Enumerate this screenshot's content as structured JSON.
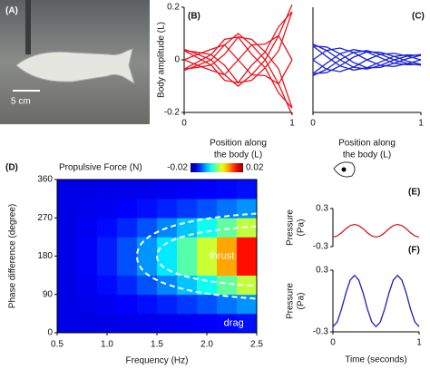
{
  "chart_data": [
    {
      "type": "image",
      "panel": "(A)",
      "scale_label": "5 cm"
    },
    {
      "type": "line",
      "panel": "(B)",
      "color": "#e8141e",
      "ylabel": "Body amplitude (L)",
      "xlabel": [
        "Position along",
        "the body (L)"
      ],
      "x": [
        0,
        0.125,
        0.25,
        0.375,
        0.5,
        0.625,
        0.75,
        0.875,
        1
      ],
      "xlim": [
        0,
        1
      ],
      "xticks": [
        0,
        1
      ],
      "ylim": [
        -0.2,
        0.2
      ],
      "yticks": [
        0.2,
        0,
        -0.2
      ],
      "series": [
        {
          "values": [
            0,
            -0.021,
            -0.04,
            -0.057,
            0,
            0.057,
            0.06,
            0.092,
            0
          ]
        },
        {
          "values": [
            0.035,
            0.008,
            -0.02,
            -0.078,
            -0.087,
            -0.021,
            0.03,
            0.126,
            0.183
          ]
        },
        {
          "values": [
            0.04,
            0.021,
            0,
            -0.057,
            -0.1,
            -0.057,
            0,
            0.092,
            0.21
          ]
        },
        {
          "values": [
            0.035,
            0.029,
            0.02,
            -0.021,
            -0.087,
            -0.078,
            -0.03,
            0.034,
            0.183
          ]
        },
        {
          "values": [
            0,
            0.021,
            0.04,
            0.057,
            0,
            -0.057,
            -0.06,
            -0.092,
            0
          ]
        },
        {
          "values": [
            -0.035,
            -0.008,
            0.02,
            0.078,
            0.087,
            0.021,
            -0.03,
            -0.126,
            -0.183
          ]
        },
        {
          "values": [
            -0.04,
            -0.021,
            0,
            0.057,
            0.1,
            0.057,
            0,
            -0.092,
            -0.21
          ]
        },
        {
          "values": [
            -0.035,
            -0.029,
            -0.02,
            0.021,
            0.087,
            0.078,
            0.03,
            -0.034,
            -0.183
          ]
        }
      ]
    },
    {
      "type": "line",
      "panel": "(C)",
      "color": "#1a24d6",
      "xlabel": [
        "Position along",
        "the body (L)"
      ],
      "x": [
        0,
        0.125,
        0.25,
        0.375,
        0.5,
        0.625,
        0.75,
        0.875,
        1
      ],
      "xlim": [
        0,
        1
      ],
      "xticks": [
        0,
        1
      ],
      "ylim": [
        -0.2,
        0.2
      ],
      "series": [
        {
          "values": [
            0,
            -0.036,
            -0.045,
            -0.028,
            0,
            0.021,
            0.025,
            0.014,
            0
          ]
        },
        {
          "values": [
            0.052,
            0.013,
            -0.023,
            -0.039,
            -0.03,
            -0.008,
            0.013,
            0.019,
            0.017
          ]
        },
        {
          "values": [
            0.06,
            0.036,
            0,
            -0.028,
            -0.035,
            -0.021,
            0,
            0.014,
            0.02
          ]
        },
        {
          "values": [
            0.052,
            0.049,
            0.023,
            -0.01,
            -0.03,
            -0.029,
            -0.013,
            0.005,
            0.017
          ]
        },
        {
          "values": [
            0,
            0.036,
            0.045,
            0.028,
            0,
            -0.021,
            -0.025,
            -0.014,
            0
          ]
        },
        {
          "values": [
            -0.052,
            -0.013,
            0.023,
            0.039,
            0.03,
            0.008,
            -0.013,
            -0.019,
            -0.017
          ]
        },
        {
          "values": [
            -0.06,
            -0.036,
            0,
            0.028,
            0.035,
            0.021,
            0,
            -0.014,
            -0.02
          ]
        },
        {
          "values": [
            -0.052,
            -0.049,
            -0.023,
            0.01,
            0.03,
            0.029,
            0.013,
            -0.005,
            -0.017
          ]
        }
      ]
    },
    {
      "type": "heatmap",
      "panel": "(D)",
      "title": "Propulsive Force (N)",
      "xlabel": "Frequency (Hz)",
      "ylabel": "Phase difference (degree)",
      "colormap": "jet",
      "clim": [
        -0.02,
        0.02
      ],
      "cticks": [
        -0.02,
        0.02
      ],
      "annotations": [
        "thrust",
        "drag"
      ],
      "xlim": [
        0.5,
        2.5
      ],
      "xticks": [
        0.5,
        {
          "value": 1,
          "label": "1.0"
        },
        1.5,
        {
          "value": 2,
          "label": "2.0"
        },
        2.5
      ],
      "ylim": [
        0,
        360
      ],
      "yticks": [
        0,
        90,
        180,
        270,
        360
      ],
      "xbins": [
        0.5,
        0.7,
        0.9,
        1.1,
        1.3,
        1.5,
        1.7,
        1.9,
        2.1,
        2.3,
        2.5
      ],
      "ybins": [
        0,
        45,
        90,
        135,
        180,
        225,
        270,
        315,
        360
      ],
      "z": [
        [
          -0.016,
          -0.016,
          -0.0159,
          -0.0158,
          -0.0157,
          -0.0155,
          -0.0153,
          -0.015,
          -0.0148,
          -0.0145
        ],
        [
          -0.016,
          -0.0158,
          -0.0155,
          -0.0151,
          -0.0145,
          -0.0137,
          -0.0128,
          -0.0118,
          -0.0105,
          -0.0092
        ],
        [
          -0.016,
          -0.0155,
          -0.0147,
          -0.0135,
          -0.0118,
          -0.0098,
          -0.0073,
          -0.0045,
          -0.0012,
          0.0025
        ],
        [
          -0.0159,
          -0.0152,
          -0.0139,
          -0.0119,
          -0.0092,
          -0.0058,
          -0.0017,
          0.003,
          0.0085,
          0.0145
        ],
        [
          -0.0159,
          -0.0152,
          -0.0139,
          -0.0119,
          -0.0092,
          -0.0058,
          -0.0017,
          0.003,
          0.0085,
          0.0145
        ],
        [
          -0.016,
          -0.0155,
          -0.0147,
          -0.0135,
          -0.0118,
          -0.0098,
          -0.0073,
          -0.0045,
          -0.0012,
          0.0025
        ],
        [
          -0.016,
          -0.0158,
          -0.0155,
          -0.0151,
          -0.0145,
          -0.0137,
          -0.0128,
          -0.0118,
          -0.0105,
          -0.0092
        ],
        [
          -0.016,
          -0.016,
          -0.0159,
          -0.0158,
          -0.0157,
          -0.0155,
          -0.0153,
          -0.015,
          -0.0148,
          -0.0145
        ]
      ]
    },
    {
      "type": "line",
      "panel": "(E)",
      "color": "#cc2020",
      "ylabel": [
        "Pressure",
        "(Pa)"
      ],
      "x": [
        0,
        0.05,
        0.1,
        0.15,
        0.2,
        0.25,
        0.3,
        0.35,
        0.4,
        0.45,
        0.5,
        0.55,
        0.6,
        0.65,
        0.7,
        0.75,
        0.8,
        0.85,
        0.9,
        0.95,
        1
      ],
      "xlim": [
        0,
        1
      ],
      "ylim": [
        -0.3,
        0.3
      ],
      "yticks": [
        0.3,
        -0.3
      ],
      "series": [
        {
          "values": [
            -0.15,
            -0.131,
            -0.081,
            -0.019,
            0.031,
            0.05,
            0.031,
            -0.019,
            -0.081,
            -0.131,
            -0.15,
            -0.131,
            -0.081,
            -0.019,
            0.031,
            0.05,
            0.031,
            -0.019,
            -0.081,
            -0.131,
            -0.15
          ]
        }
      ]
    },
    {
      "type": "line",
      "panel": "(F)",
      "color": "#2020b0",
      "ylabel": [
        "Pressure",
        "(Pa)"
      ],
      "xlabel": [
        "Time (seconds)"
      ],
      "x": [
        0,
        0.05,
        0.1,
        0.15,
        0.2,
        0.25,
        0.3,
        0.35,
        0.4,
        0.45,
        0.5,
        0.55,
        0.6,
        0.65,
        0.7,
        0.75,
        0.8,
        0.85,
        0.9,
        0.95,
        1
      ],
      "xlim": [
        0,
        1
      ],
      "xticks": [
        0,
        1
      ],
      "ylim": [
        -0.3,
        0.3
      ],
      "yticks": [
        0.3,
        -0.3
      ],
      "series": [
        {
          "values": [
            -0.25,
            -0.203,
            -0.078,
            0.078,
            0.203,
            0.25,
            0.203,
            0.078,
            -0.078,
            -0.203,
            -0.25,
            -0.203,
            -0.078,
            0.078,
            0.203,
            0.25,
            0.203,
            0.078,
            -0.078,
            -0.203,
            -0.25
          ]
        }
      ]
    }
  ]
}
